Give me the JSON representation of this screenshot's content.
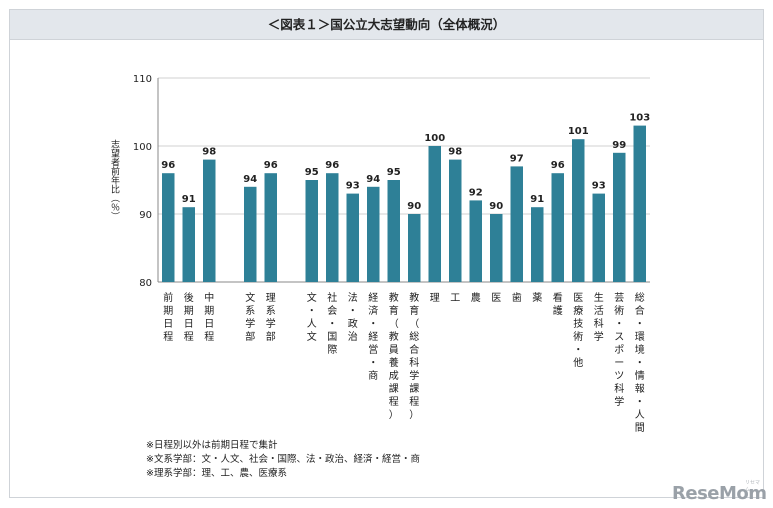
{
  "title": "＜図表１＞国公立大志望動向（全体概況）",
  "footnotes": [
    "※日程別以外は前期日程で集計",
    "※文系学部：文・人文、社会・国際、法・政治、経済・経営・商",
    "※理系学部：理、工、農、医療系"
  ],
  "logo": "ReseMom",
  "logo_small": "リセマム",
  "colors": {
    "bar": "#2e8097",
    "axis": "#888888",
    "grid": "#d0d0d0"
  },
  "chart_data": {
    "type": "bar",
    "title": "＜図表１＞国公立大志望動向（全体概況）",
    "xlabel": "",
    "ylabel": "志望者前年比（％）",
    "ylim": [
      80,
      110
    ],
    "yticks": [
      80,
      90,
      100,
      110
    ],
    "grid": true,
    "categories": [
      "前期日程",
      "後期日程",
      "中期日程",
      "",
      "文系学部",
      "理系学部",
      "",
      "文・人文",
      "社会・国際",
      "法・政治",
      "経済・経営・商",
      "教育（教員養成課程）",
      "教育（総合科学課程）",
      "理",
      "工",
      "農",
      "医",
      "歯",
      "薬",
      "看護",
      "医療技術・他",
      "生活科学",
      "芸術・スポーツ科学",
      "総合・環境・情報・人間"
    ],
    "values": [
      96,
      91,
      98,
      null,
      94,
      96,
      null,
      95,
      96,
      93,
      94,
      95,
      90,
      100,
      98,
      92,
      90,
      97,
      91,
      96,
      101,
      93,
      99,
      103
    ],
    "labels": [
      "96",
      "91",
      "98",
      "",
      "94",
      "96",
      "",
      "95",
      "96",
      "93",
      "94",
      "95",
      "90",
      "100",
      "98",
      "92",
      "90",
      "97",
      "91",
      "96",
      "101",
      "93",
      "99",
      "103"
    ]
  }
}
